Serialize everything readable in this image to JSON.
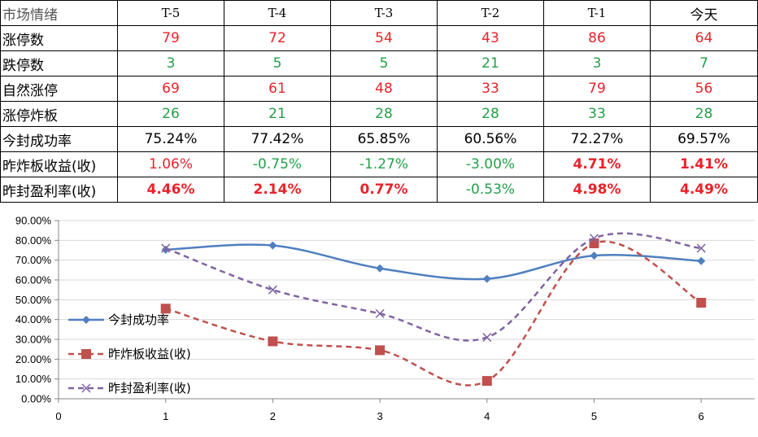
{
  "table": {
    "header": [
      "市场情绪",
      "T-5",
      "T-4",
      "T-3",
      "T-2",
      "T-1",
      "今天"
    ],
    "rows": [
      {
        "label": "涨停数",
        "values": [
          "79",
          "72",
          "54",
          "43",
          "86",
          "64"
        ],
        "colors": [
          "red",
          "red",
          "red",
          "red",
          "red",
          "red"
        ],
        "bold": [
          false,
          false,
          false,
          false,
          false,
          false
        ]
      },
      {
        "label": "跌停数",
        "values": [
          "3",
          "5",
          "5",
          "21",
          "3",
          "7"
        ],
        "colors": [
          "green",
          "green",
          "green",
          "green",
          "green",
          "green"
        ],
        "bold": [
          false,
          false,
          false,
          false,
          false,
          false
        ]
      },
      {
        "label": "自然涨停",
        "values": [
          "69",
          "61",
          "48",
          "33",
          "79",
          "56"
        ],
        "colors": [
          "red",
          "red",
          "red",
          "red",
          "red",
          "red"
        ],
        "bold": [
          false,
          false,
          false,
          false,
          false,
          false
        ]
      },
      {
        "label": "涨停炸板",
        "values": [
          "26",
          "21",
          "28",
          "28",
          "33",
          "28"
        ],
        "colors": [
          "green",
          "green",
          "green",
          "green",
          "green",
          "green"
        ],
        "bold": [
          false,
          false,
          false,
          false,
          false,
          false
        ]
      },
      {
        "label": "今封成功率",
        "values": [
          "75.24%",
          "77.42%",
          "65.85%",
          "60.56%",
          "72.27%",
          "69.57%"
        ],
        "colors": [
          "black",
          "black",
          "black",
          "black",
          "black",
          "black"
        ],
        "bold": [
          false,
          false,
          false,
          false,
          false,
          false
        ]
      },
      {
        "label": "昨炸板收益(收)",
        "values": [
          "1.06%",
          "-0.75%",
          "-1.27%",
          "-3.00%",
          "4.71%",
          "1.41%"
        ],
        "colors": [
          "red",
          "green",
          "green",
          "green",
          "red",
          "red"
        ],
        "bold": [
          false,
          false,
          false,
          false,
          true,
          true
        ]
      },
      {
        "label": "昨封盈利率(收)",
        "values": [
          "4.46%",
          "2.14%",
          "0.77%",
          "-0.53%",
          "4.98%",
          "4.49%"
        ],
        "colors": [
          "red",
          "red",
          "red",
          "green",
          "red",
          "red"
        ],
        "bold": [
          true,
          true,
          true,
          false,
          true,
          true
        ]
      }
    ]
  },
  "chart_data": {
    "type": "line",
    "x": [
      1,
      2,
      3,
      4,
      5,
      6
    ],
    "xlim": [
      0,
      6.5
    ],
    "ylim": [
      0,
      90
    ],
    "x_ticks": [
      "0",
      "1",
      "2",
      "3",
      "4",
      "5",
      "6"
    ],
    "y_ticks": [
      "0.00%",
      "10.00%",
      "20.00%",
      "30.00%",
      "40.00%",
      "50.00%",
      "60.00%",
      "70.00%",
      "80.00%",
      "90.00%"
    ],
    "grid": "horizontal",
    "legend_position": "left",
    "series": [
      {
        "name": "今封成功率",
        "values": [
          75.24,
          77.42,
          65.85,
          60.56,
          72.27,
          69.57
        ],
        "color": "#4f7fbf",
        "marker": "diamond",
        "dash": "solid"
      },
      {
        "name": "昨炸板收益(收)",
        "values": [
          45.5,
          29.0,
          24.5,
          9.0,
          78.5,
          48.5
        ],
        "color": "#c0504d",
        "marker": "square",
        "dash": "dashed"
      },
      {
        "name": "昨封盈利率(收)",
        "values": [
          76.0,
          55.0,
          43.0,
          31.0,
          81.0,
          76.0
        ],
        "color": "#8064a2",
        "marker": "x",
        "dash": "dashed"
      }
    ]
  }
}
